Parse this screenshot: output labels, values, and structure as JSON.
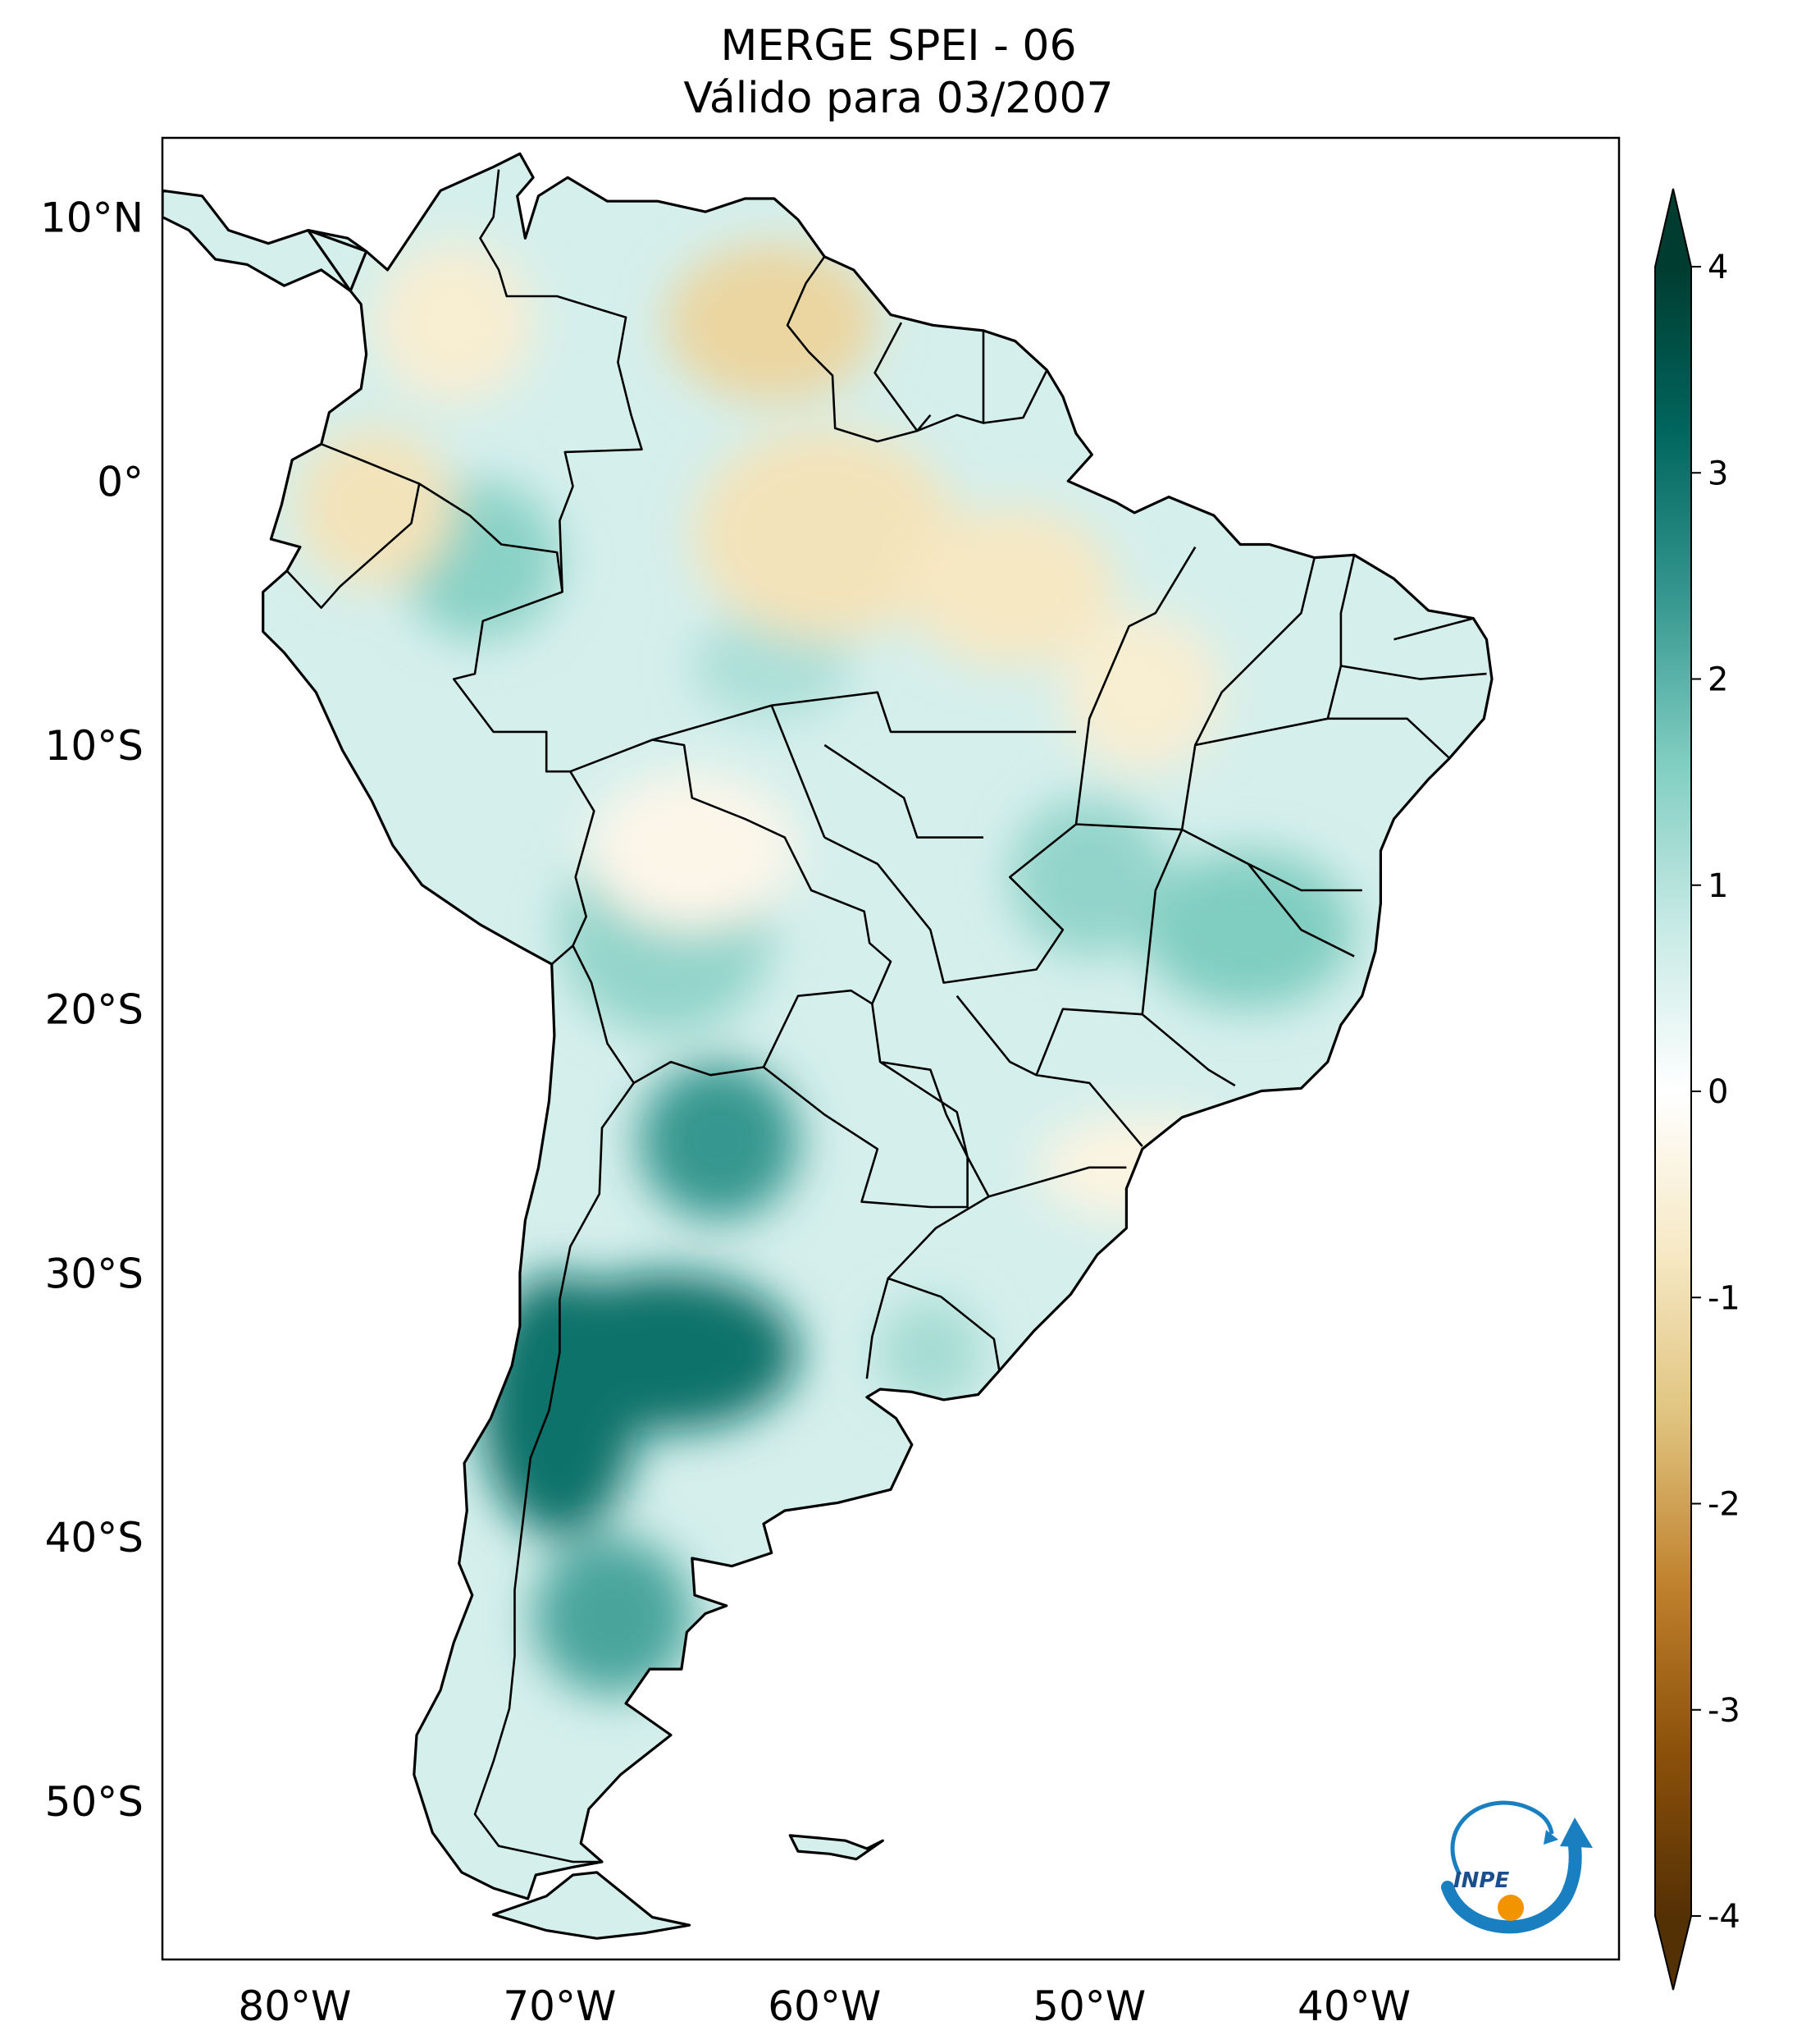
{
  "title": {
    "line1": "MERGE   SPEI - 06",
    "line2": "Válido para 03/2007"
  },
  "map": {
    "projection": "PlateCarree",
    "lon_range": [
      -85,
      -30
    ],
    "lat_range": [
      -56,
      13
    ],
    "lat_ticks": [
      {
        "value": 10,
        "label": "10°N"
      },
      {
        "value": 0,
        "label": "0°"
      },
      {
        "value": -10,
        "label": "10°S"
      },
      {
        "value": -20,
        "label": "20°S"
      },
      {
        "value": -30,
        "label": "30°S"
      },
      {
        "value": -40,
        "label": "40°S"
      },
      {
        "value": -50,
        "label": "50°S"
      }
    ],
    "lon_ticks": [
      {
        "value": -80,
        "label": "80°W"
      },
      {
        "value": -70,
        "label": "70°W"
      },
      {
        "value": -60,
        "label": "60°W"
      },
      {
        "value": -50,
        "label": "50°W"
      },
      {
        "value": -40,
        "label": "40°W"
      }
    ],
    "field_blobs": [
      {
        "lon": -66,
        "lat": -33,
        "rlon": 5,
        "rlat": 3,
        "v": 3.0
      },
      {
        "lon": -70,
        "lat": -35,
        "rlon": 3,
        "rlat": 5,
        "v": 3.0
      },
      {
        "lon": -64,
        "lat": -25,
        "rlon": 3,
        "rlat": 3,
        "v": 2.4
      },
      {
        "lon": -68,
        "lat": -43,
        "rlon": 3,
        "rlat": 3,
        "v": 2.2
      },
      {
        "lon": -44,
        "lat": -17,
        "rlon": 4,
        "rlat": 3,
        "v": 1.6
      },
      {
        "lon": -50,
        "lat": -15,
        "rlon": 3,
        "rlat": 3,
        "v": 1.4
      },
      {
        "lon": -66,
        "lat": -17,
        "rlon": 4,
        "rlat": 4,
        "v": 1.4
      },
      {
        "lon": -73,
        "lat": -3,
        "rlon": 3,
        "rlat": 3,
        "v": 1.5
      },
      {
        "lon": -62,
        "lat": -7,
        "rlon": 3,
        "rlat": 2,
        "v": 1.1
      },
      {
        "lon": -62,
        "lat": 6,
        "rlon": 4,
        "rlat": 3,
        "v": -1.2
      },
      {
        "lon": -60,
        "lat": -2,
        "rlon": 5,
        "rlat": 4,
        "v": -0.9
      },
      {
        "lon": -77,
        "lat": -1,
        "rlon": 3,
        "rlat": 3,
        "v": -0.9
      },
      {
        "lon": -53,
        "lat": -4,
        "rlon": 4,
        "rlat": 3,
        "v": -0.8
      },
      {
        "lon": -74,
        "lat": 6,
        "rlon": 3,
        "rlat": 3,
        "v": -0.6
      },
      {
        "lon": -48,
        "lat": -8,
        "rlon": 3,
        "rlat": 3,
        "v": -0.6
      },
      {
        "lon": -65,
        "lat": -14,
        "rlon": 4,
        "rlat": 3,
        "v": -0.3
      },
      {
        "lon": -48,
        "lat": -26,
        "rlon": 4,
        "rlat": 2,
        "v": -0.4
      },
      {
        "lon": -56,
        "lat": -33,
        "rlon": 2,
        "rlat": 2,
        "v": 1.2
      }
    ],
    "field_base": 0.6
  },
  "colorbar": {
    "ticks": [
      "4",
      "3",
      "2",
      "1",
      "0",
      "-1",
      "-2",
      "-3",
      "-4"
    ],
    "vmin": -4,
    "vmax": 4,
    "colors": [
      "#543005",
      "#8c510a",
      "#bf812d",
      "#dfc27d",
      "#f6e8c3",
      "#ffffff",
      "#c7eae5",
      "#80cdc1",
      "#35978f",
      "#01665e",
      "#003c30"
    ]
  },
  "logo": {
    "text": "INPE"
  }
}
